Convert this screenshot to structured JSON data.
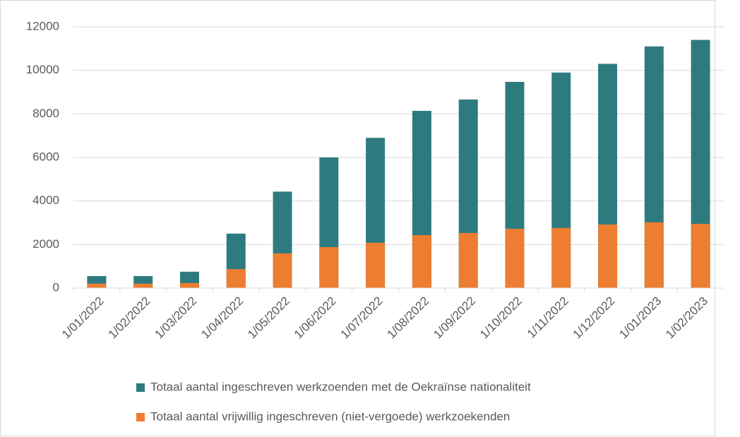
{
  "chart_data": {
    "type": "bar",
    "overlap": true,
    "categories": [
      "1/01/2022",
      "1/02/2022",
      "1/03/2022",
      "1/04/2022",
      "1/05/2022",
      "1/06/2022",
      "1/07/2022",
      "1/08/2022",
      "1/09/2022",
      "1/10/2022",
      "1/11/2022",
      "1/12/2022",
      "1/01/2023",
      "1/02/2023"
    ],
    "series": [
      {
        "name": "Totaal aantal ingeschreven werkzoenden met de Oekraïnse nationaliteit",
        "color": "#2e7b7f",
        "values": [
          550,
          550,
          750,
          2500,
          4430,
          6000,
          6900,
          8140,
          8660,
          9470,
          9900,
          10300,
          11100,
          11400
        ]
      },
      {
        "name": "Totaal aantal vrijwillig ingeschreven (niet-vergoede) werkzoekenden",
        "color": "#ed7d31",
        "values": [
          200,
          200,
          230,
          870,
          1590,
          1880,
          2080,
          2430,
          2530,
          2720,
          2760,
          2920,
          3020,
          2950
        ]
      }
    ],
    "ylim": [
      0,
      12000
    ],
    "yticks": [
      0,
      2000,
      4000,
      6000,
      8000,
      10000,
      12000
    ],
    "grid": true,
    "legend": "bottom"
  }
}
